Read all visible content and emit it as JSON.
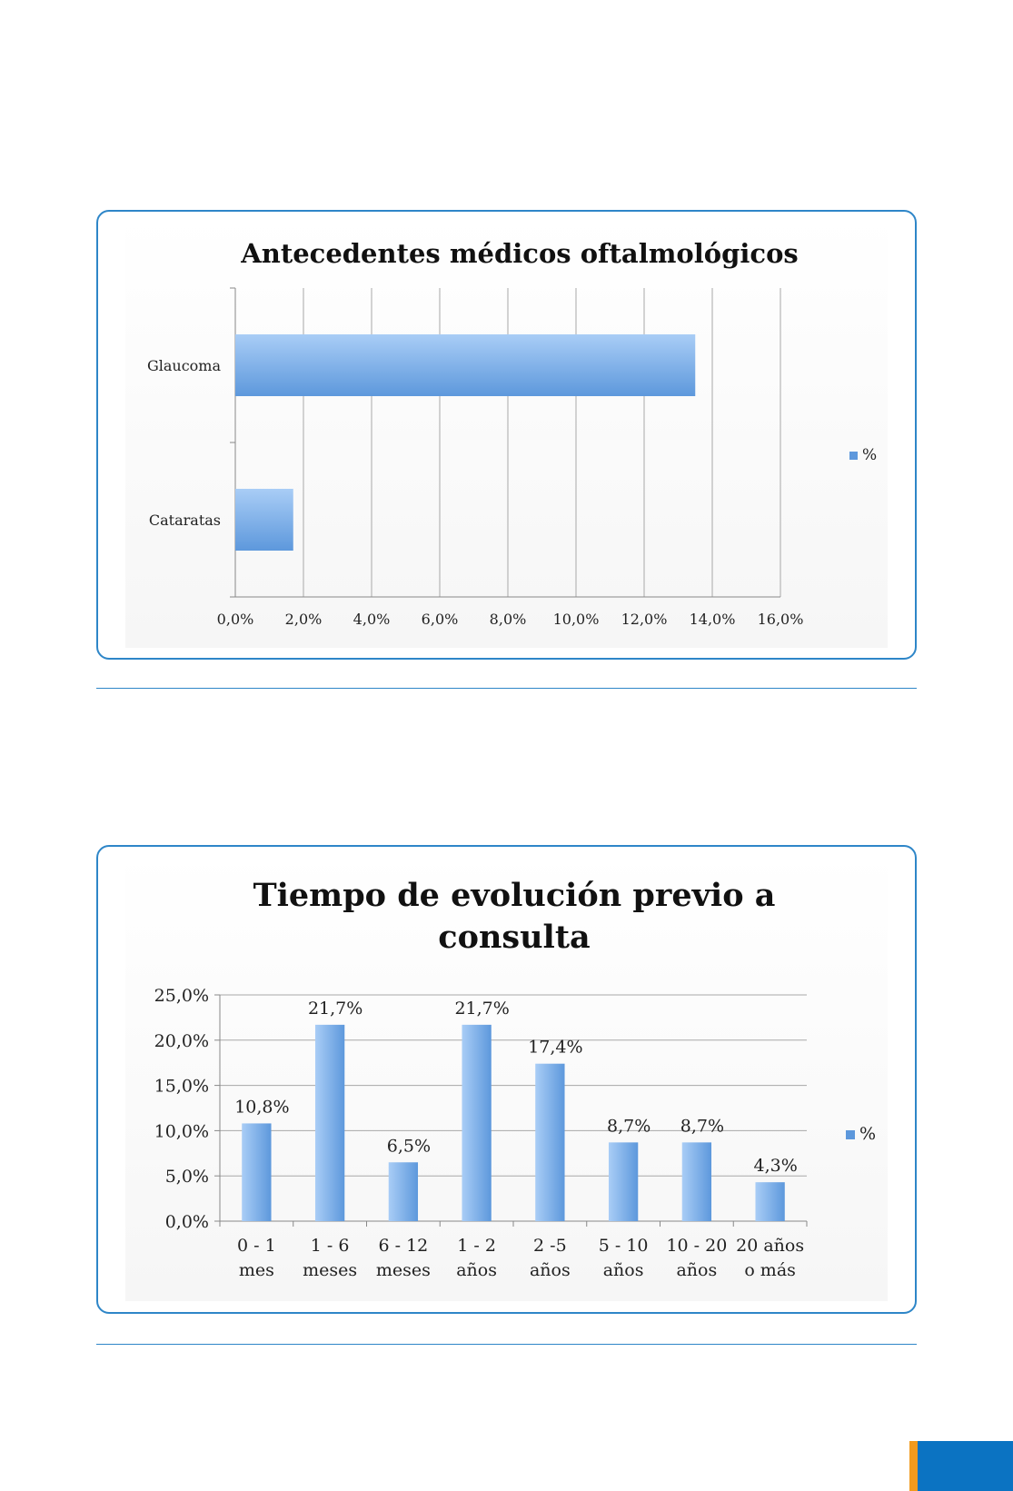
{
  "charts": [
    {
      "type": "bar",
      "orientation": "horizontal",
      "title": "Antecedentes médicos oftalmológicos",
      "categories": [
        "Glaucoma",
        "Cataratas"
      ],
      "series": [
        {
          "name": "%",
          "values": [
            13.5,
            1.7
          ]
        }
      ],
      "x_ticks": [
        "0,0%",
        "2,0%",
        "4,0%",
        "6,0%",
        "8,0%",
        "10,0%",
        "12,0%",
        "14,0%",
        "16,0%"
      ],
      "xlim": [
        0,
        16
      ],
      "grid": true,
      "legend": "right",
      "color": "#6aa7e6"
    },
    {
      "type": "bar",
      "orientation": "vertical",
      "title_lines": [
        "Tiempo de evolución previo a",
        "consulta"
      ],
      "categories": [
        [
          "0 - 1",
          "mes"
        ],
        [
          "1 - 6",
          "meses"
        ],
        [
          "6 - 12",
          "meses"
        ],
        [
          "1 - 2",
          "años"
        ],
        [
          "2 -5",
          "años"
        ],
        [
          "5 - 10",
          "años"
        ],
        [
          "10 - 20",
          "años"
        ],
        [
          "20 años",
          "o más"
        ]
      ],
      "series": [
        {
          "name": "%",
          "values": [
            10.8,
            21.7,
            6.5,
            21.7,
            17.4,
            8.7,
            8.7,
            4.3
          ]
        }
      ],
      "data_labels": [
        "10,8%",
        "21,7%",
        "6,5%",
        "21,7%",
        "17,4%",
        "8,7%",
        "8,7%",
        "4,3%"
      ],
      "y_ticks": [
        "0,0%",
        "5,0%",
        "10,0%",
        "15,0%",
        "20,0%",
        "25,0%"
      ],
      "ylim": [
        0,
        25
      ],
      "grid": true,
      "legend": "right",
      "color": "#6aa7e6"
    }
  ]
}
